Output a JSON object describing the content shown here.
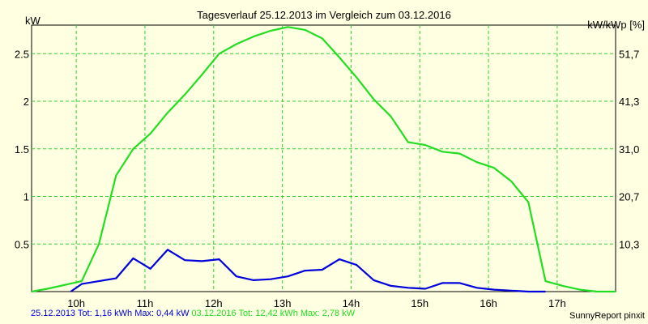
{
  "chart_data": {
    "type": "line",
    "title": "Tagesverlauf 25.12.2013 im Vergleich zum 03.12.2016",
    "ylabel_left": "kW",
    "ylabel_right": "kW/kWp [%]",
    "xlim": [
      9.35,
      17.85
    ],
    "ylim": [
      0,
      2.8
    ],
    "x_ticks": [
      {
        "value": 10,
        "label": "10h"
      },
      {
        "value": 11,
        "label": "11h"
      },
      {
        "value": 12,
        "label": "12h"
      },
      {
        "value": 13,
        "label": "13h"
      },
      {
        "value": 14,
        "label": "14h"
      },
      {
        "value": 15,
        "label": "15h"
      },
      {
        "value": 16,
        "label": "16h"
      },
      {
        "value": 17,
        "label": "17h"
      }
    ],
    "y_ticks_left": [
      {
        "value": 0.5,
        "label": "0.5"
      },
      {
        "value": 1,
        "label": "1"
      },
      {
        "value": 1.5,
        "label": "1.5"
      },
      {
        "value": 2,
        "label": "2"
      },
      {
        "value": 2.5,
        "label": "2.5"
      }
    ],
    "y_ticks_right": [
      {
        "value": 0.5,
        "label": "10,3"
      },
      {
        "value": 1,
        "label": "20,7"
      },
      {
        "value": 1.5,
        "label": "31,0"
      },
      {
        "value": 2,
        "label": "41,3"
      },
      {
        "value": 2.5,
        "label": "51,7"
      }
    ],
    "series": [
      {
        "color": "#0000dd",
        "points": [
          [
            9.92,
            0.0
          ],
          [
            10.08,
            0.08
          ],
          [
            10.33,
            0.11
          ],
          [
            10.58,
            0.14
          ],
          [
            10.83,
            0.35
          ],
          [
            11.08,
            0.24
          ],
          [
            11.33,
            0.44
          ],
          [
            11.58,
            0.33
          ],
          [
            11.83,
            0.32
          ],
          [
            12.08,
            0.34
          ],
          [
            12.33,
            0.16
          ],
          [
            12.58,
            0.12
          ],
          [
            12.83,
            0.13
          ],
          [
            13.08,
            0.16
          ],
          [
            13.33,
            0.22
          ],
          [
            13.58,
            0.23
          ],
          [
            13.83,
            0.34
          ],
          [
            14.08,
            0.28
          ],
          [
            14.33,
            0.12
          ],
          [
            14.58,
            0.06
          ],
          [
            14.83,
            0.04
          ],
          [
            15.08,
            0.03
          ],
          [
            15.33,
            0.09
          ],
          [
            15.58,
            0.09
          ],
          [
            15.83,
            0.04
          ],
          [
            16.08,
            0.02
          ],
          [
            16.33,
            0.01
          ],
          [
            16.58,
            0.0
          ],
          [
            16.83,
            0.0
          ]
        ]
      },
      {
        "color": "#22dd22",
        "points": [
          [
            9.35,
            0.0
          ],
          [
            9.58,
            0.03
          ],
          [
            9.83,
            0.07
          ],
          [
            10.08,
            0.11
          ],
          [
            10.33,
            0.5
          ],
          [
            10.58,
            1.22
          ],
          [
            10.83,
            1.5
          ],
          [
            11.08,
            1.66
          ],
          [
            11.33,
            1.88
          ],
          [
            11.58,
            2.07
          ],
          [
            11.83,
            2.28
          ],
          [
            12.08,
            2.5
          ],
          [
            12.33,
            2.6
          ],
          [
            12.58,
            2.68
          ],
          [
            12.83,
            2.74
          ],
          [
            13.08,
            2.78
          ],
          [
            13.33,
            2.75
          ],
          [
            13.58,
            2.66
          ],
          [
            13.83,
            2.46
          ],
          [
            14.08,
            2.25
          ],
          [
            14.33,
            2.02
          ],
          [
            14.58,
            1.84
          ],
          [
            14.83,
            1.57
          ],
          [
            15.08,
            1.54
          ],
          [
            15.33,
            1.47
          ],
          [
            15.58,
            1.45
          ],
          [
            15.83,
            1.36
          ],
          [
            16.08,
            1.3
          ],
          [
            16.33,
            1.16
          ],
          [
            16.58,
            0.94
          ],
          [
            16.83,
            0.11
          ],
          [
            17.08,
            0.06
          ],
          [
            17.33,
            0.02
          ],
          [
            17.58,
            0.0
          ],
          [
            17.85,
            0.0
          ]
        ]
      }
    ]
  },
  "legend": {
    "series1_text": "25.12.2013 Tot: 1,16 kWh Max: 0,44 kW",
    "series1_color": "#0000dd",
    "series2_text": "03.12.2016 Tot: 12,42 kWh Max: 2,78 kW",
    "series2_color": "#22dd22"
  },
  "credit": "SunnyReport pinxit"
}
